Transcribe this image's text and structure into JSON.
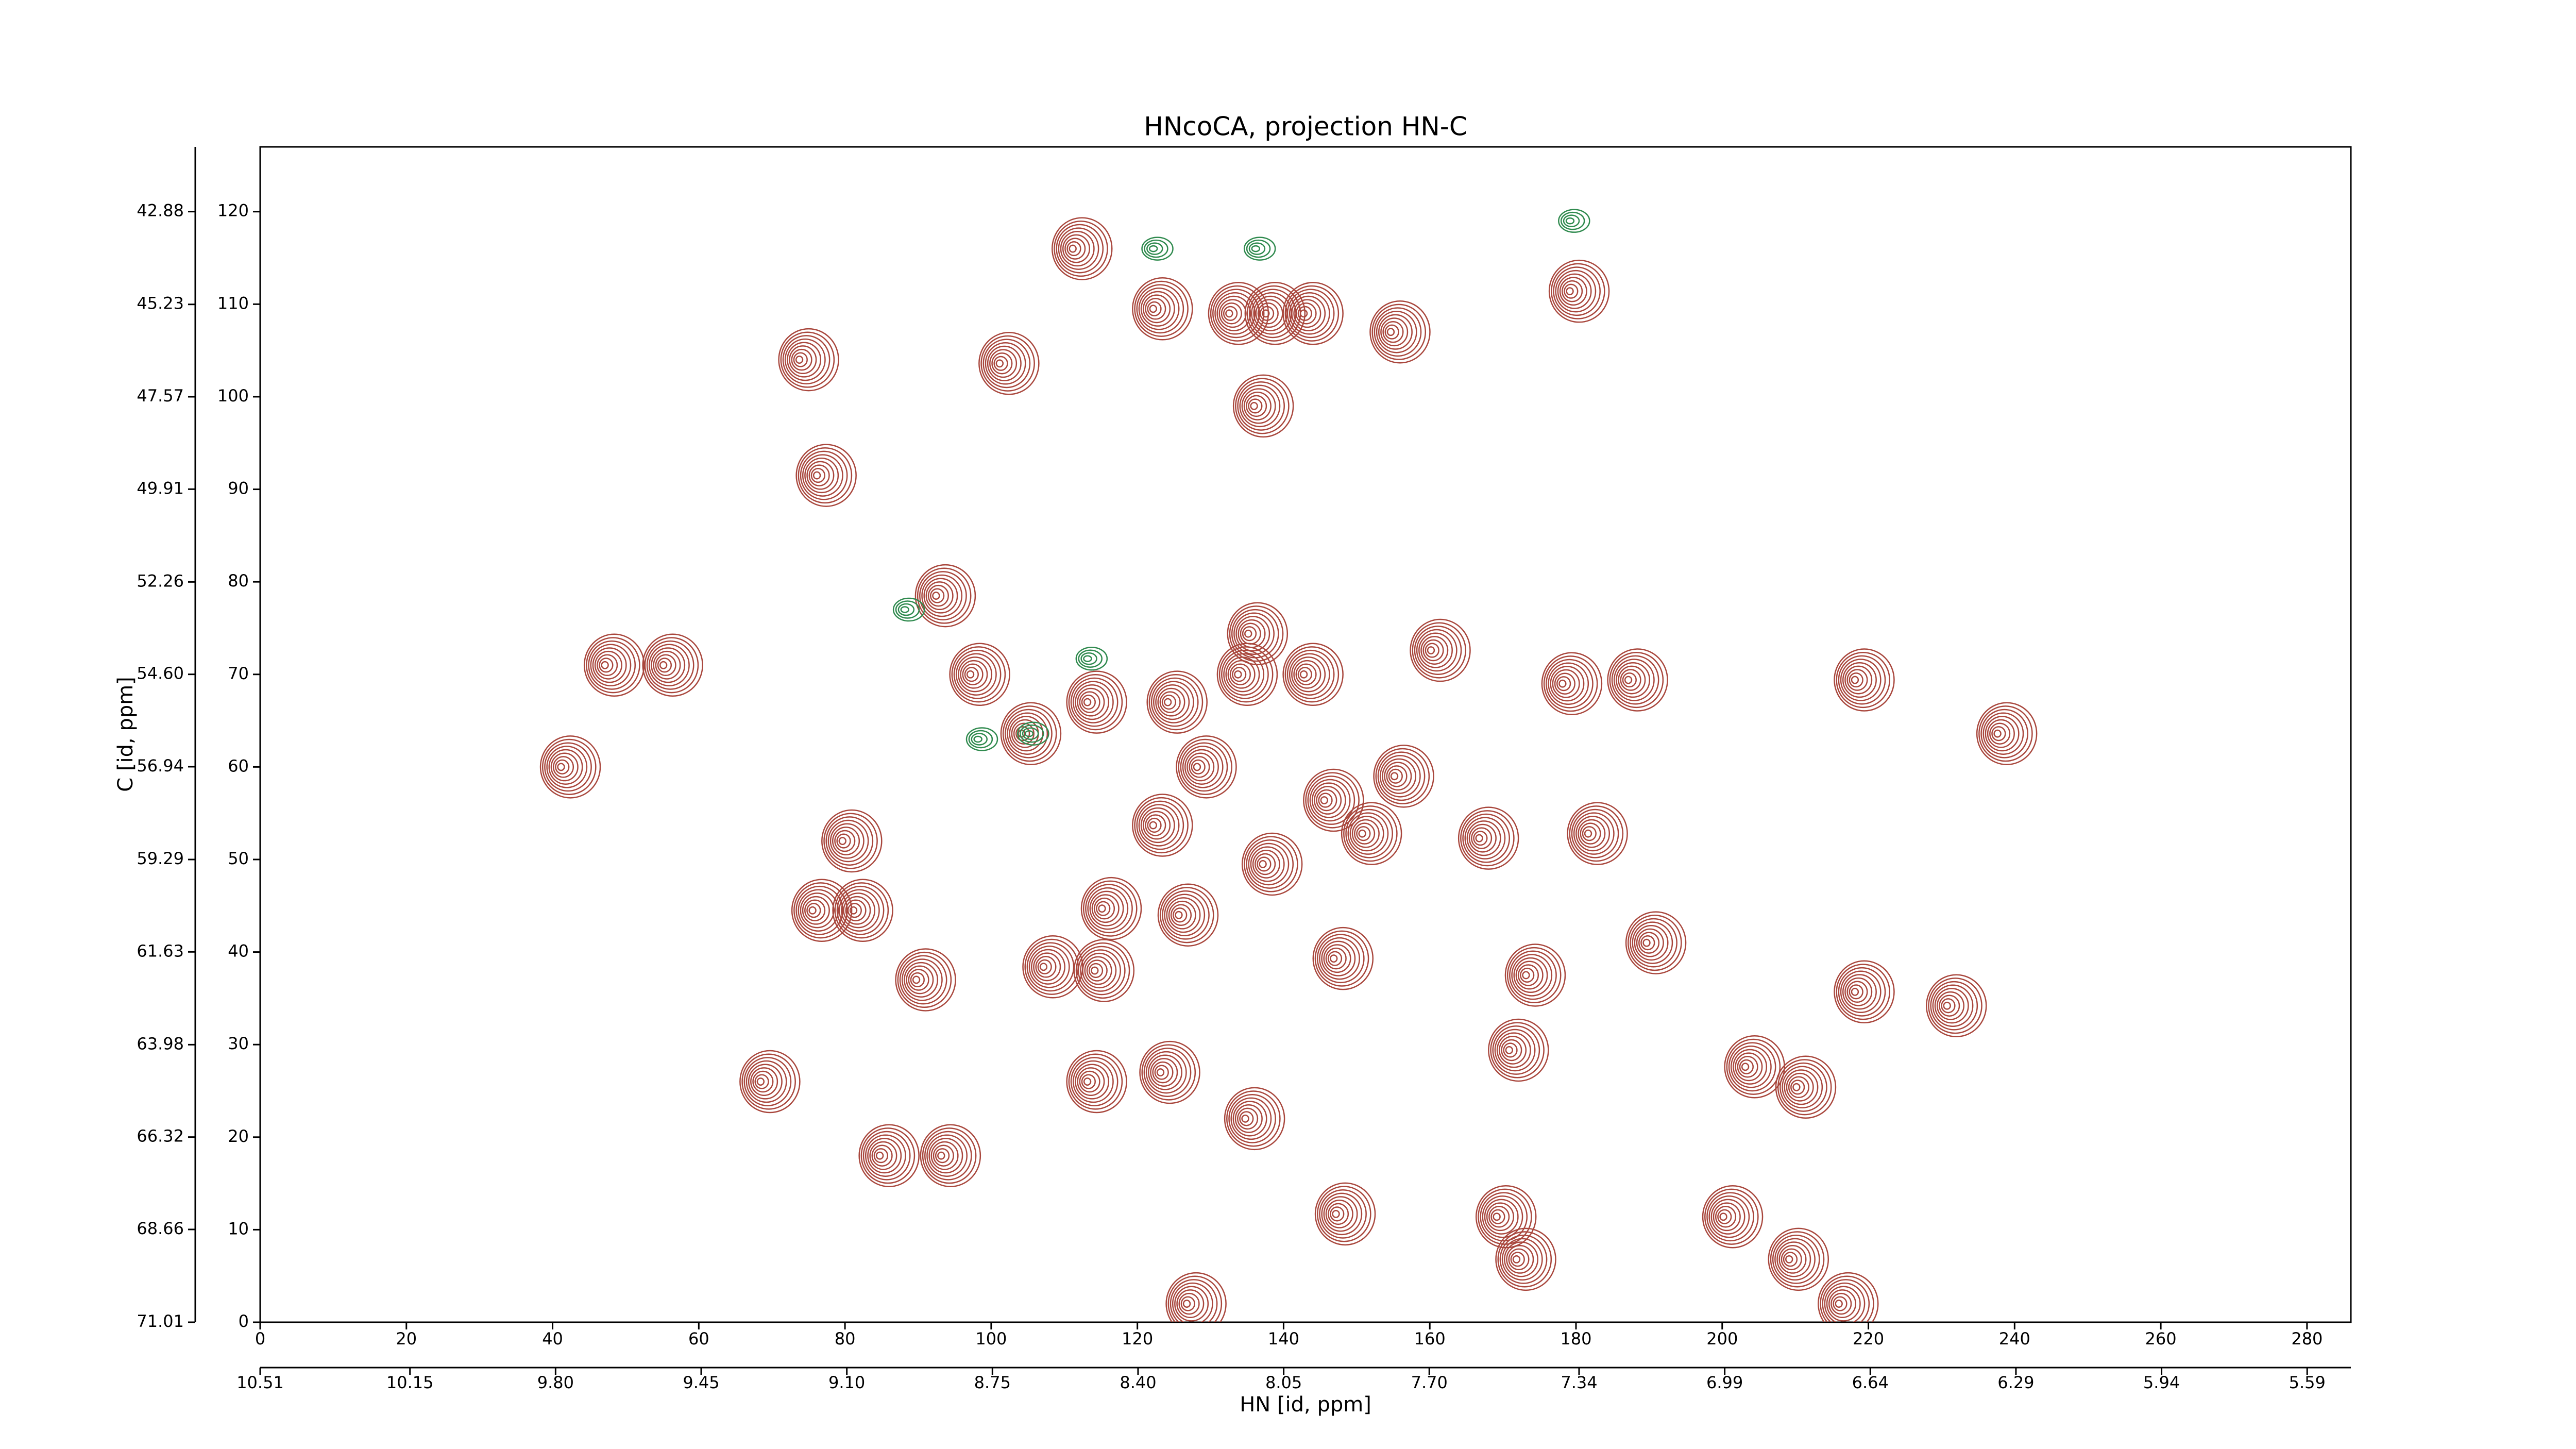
{
  "chart_data": {
    "type": "contour",
    "title": "HNcoCA, projection HN-C",
    "xlabel": "HN [id, ppm]",
    "ylabel": "C [id, ppm]",
    "xlim": [
      0,
      286
    ],
    "xticks": [
      0,
      20,
      40,
      60,
      80,
      100,
      120,
      140,
      160,
      180,
      200,
      220,
      240,
      260,
      280
    ],
    "x2lim": [
      10.51,
      5.485
    ],
    "x2ticks": [
      10.51,
      10.15,
      {
        "value": 9.8,
        "label": "9.80"
      },
      9.45,
      {
        "value": 9.1,
        "label": "9.10"
      },
      8.75,
      {
        "value": 8.4,
        "label": "8.40"
      },
      8.05,
      {
        "value": 7.7,
        "label": "7.70"
      },
      7.34,
      6.99,
      6.64,
      6.29,
      5.94,
      5.59
    ],
    "ylim": [
      0,
      127
    ],
    "yticks": [
      0,
      10,
      20,
      30,
      40,
      50,
      60,
      70,
      80,
      90,
      100,
      110,
      120
    ],
    "y2lim": [
      71.01,
      41.24
    ],
    "y2ticks": [
      71.01,
      68.66,
      66.32,
      63.98,
      61.63,
      59.29,
      56.94,
      {
        "value": 54.6,
        "label": "54.60"
      },
      52.26,
      49.91,
      47.57,
      45.23,
      42.88
    ],
    "colors": {
      "positive": "#a9473d",
      "negative": "#2f8a4e"
    },
    "positive_peaks": {
      "x": [
        47,
        55,
        41,
        73.6,
        76,
        79.5,
        75.4,
        81,
        84.6,
        93,
        89.6,
        92.3,
        101,
        111,
        107,
        114,
        113,
        123,
        122,
        132.4,
        137.4,
        142.6,
        135.8,
        135,
        154.5,
        160,
        179,
        126.6,
        137,
        145.4,
        150.6,
        166.6,
        155,
        146.7,
        134.6,
        147,
        169,
        171.7,
        170.7,
        173,
        181.5,
        189.5,
        178,
        187,
        218,
        237.5,
        203,
        210,
        200,
        209,
        218,
        230.6,
        215.8,
        68.3,
        97,
        104,
        113,
        124,
        133.6,
        142.6,
        122,
        128,
        115,
        125.5
      ],
      "y": [
        71,
        71,
        60,
        104,
        91.5,
        52,
        44.5,
        44.5,
        18,
        18,
        37,
        78.5,
        103.6,
        116,
        38.4,
        38,
        26,
        27,
        109.5,
        109,
        109,
        109,
        99,
        74.4,
        107,
        72.6,
        111.4,
        2,
        49.5,
        56.4,
        52.8,
        52.3,
        59,
        39.3,
        22,
        11.7,
        11.4,
        6.8,
        29.4,
        37.5,
        52.8,
        41,
        69,
        69.4,
        69.4,
        63.6,
        27.6,
        25.4,
        11.4,
        6.8,
        35.7,
        34.2,
        2,
        26,
        70,
        63.6,
        67,
        67,
        70,
        70,
        53.7,
        60,
        44.7,
        44
      ]
    },
    "negative_peaks": {
      "x": [
        113,
        105,
        98,
        122,
        136,
        179,
        88
      ],
      "y": [
        71.7,
        63.6,
        63,
        116,
        116,
        119,
        77
      ]
    }
  }
}
